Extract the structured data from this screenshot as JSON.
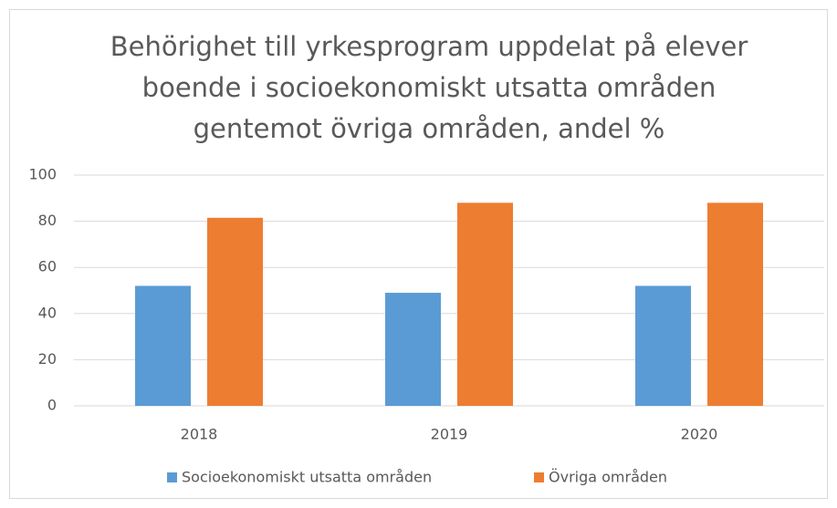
{
  "chart_data": {
    "type": "bar",
    "title": [
      "Behörighet till yrkesprogram uppdelat på elever",
      "boende i socioekonomiskt utsatta områden",
      "gentemot övriga områden, andel %"
    ],
    "categories": [
      "2018",
      "2019",
      "2020"
    ],
    "series": [
      {
        "name": "Socioekonomiskt utsatta områden",
        "color": "#5b9bd5",
        "values": [
          52,
          49,
          52
        ]
      },
      {
        "name": "Övriga områden",
        "color": "#ed7d31",
        "values": [
          81.5,
          88,
          88
        ]
      }
    ],
    "ylim": [
      0,
      100
    ],
    "yticks": [
      0,
      20,
      40,
      60,
      80,
      100
    ],
    "grid": true,
    "legend": "bottom"
  }
}
